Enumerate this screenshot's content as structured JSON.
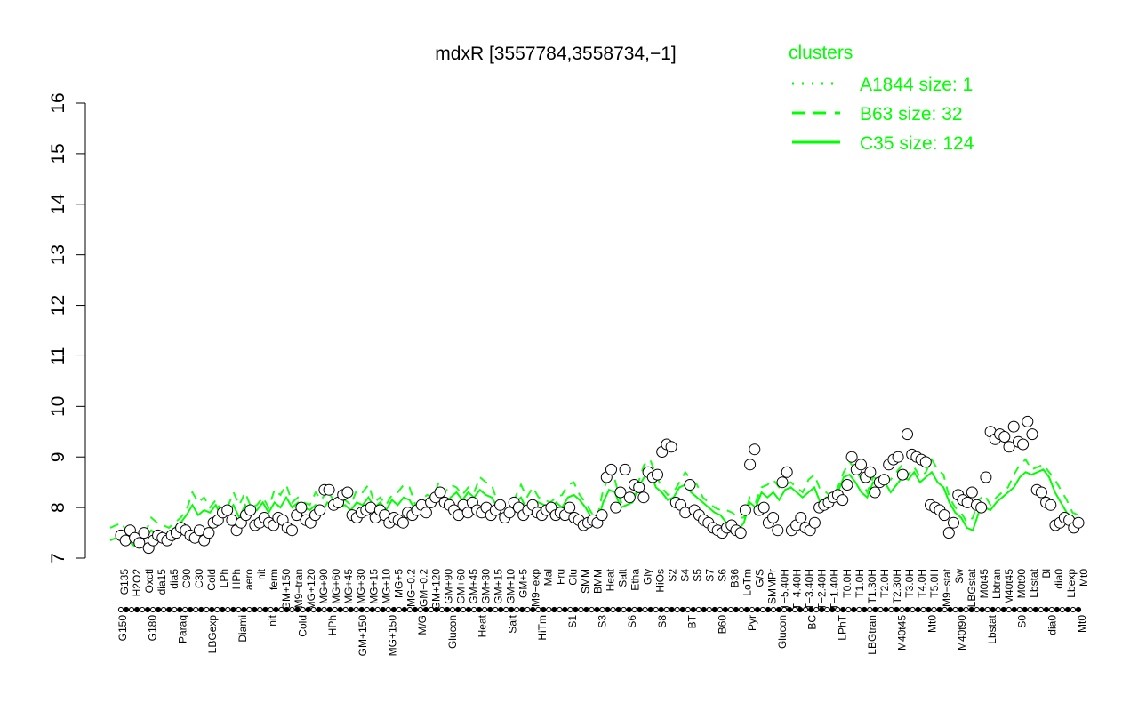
{
  "colors": {
    "axis": "#000000",
    "series": "#00ff00",
    "point_fill": "#ffffff",
    "point_stroke": "#000000"
  },
  "chart_data": {
    "type": "line",
    "title": "mdxR [3557784,3558734,−1]",
    "xlabel": "",
    "ylabel": "",
    "ylim": [
      7,
      16
    ],
    "yticks": [
      7,
      8,
      9,
      10,
      11,
      12,
      13,
      14,
      15,
      16
    ],
    "legend": {
      "title": "clusters",
      "placement": "top-right",
      "entries": [
        {
          "label": "A1844 size: 1",
          "style": "dotted"
        },
        {
          "label": "B63 size: 32",
          "style": "dashed"
        },
        {
          "label": "C35 size: 124",
          "style": "solid"
        }
      ]
    },
    "x_labels_top": [
      "G135",
      "H2O2",
      "Oxctl",
      "dia15",
      "dia5",
      "C90",
      "C30",
      "Cold",
      "LPh",
      "HPh",
      "aero",
      "nit",
      "ferm",
      "GM+150",
      "M9−tran",
      "MG+120",
      "MG+90",
      "MG+60",
      "MG+45",
      "MG+30",
      "MG+15",
      "MG+10",
      "MG+5",
      "MG−0.2",
      "GM−0.2",
      "GM+120",
      "GM+90",
      "GM+60",
      "GM+45",
      "GM+30",
      "GM+15",
      "GM+10",
      "GM+5",
      "M9−exp",
      "Mal",
      "Fru",
      "Glu",
      "SMM",
      "BMM",
      "Heat",
      "Salt",
      "Etha",
      "Gly",
      "HiOs",
      "S2",
      "S4",
      "S5",
      "S7",
      "S6",
      "B36",
      "LoTm",
      "G/S",
      "SMMPr",
      "T−5.40H",
      "T−4.40H",
      "T−3.40H",
      "T−2.40H",
      "T−1.40H",
      "T0.0H",
      "T1.0H",
      "T1.30H",
      "T2.0H",
      "T2.30H",
      "T3.0H",
      "T4.0H",
      "T5.0H",
      "M9−stat",
      "Sw",
      "LBGstat",
      "M0t45",
      "Lbtran",
      "M40t45",
      "M0t90",
      "Lbstat",
      "Bl",
      "dia0",
      "Lbexp",
      "Mt0"
    ],
    "x_labels_bottom": [
      "G150",
      "G180",
      "Paraq",
      "LBGexp",
      "Diami",
      "nit",
      "Cold",
      "HPh",
      "GM+150",
      "MG+150",
      "M/G",
      "Glucon",
      "Heat",
      "Salt",
      "HiTm",
      "S1",
      "S3",
      "S6",
      "S8",
      "BT",
      "B60",
      "Pyr",
      "Glucon",
      "BC",
      "LPhT",
      "LBGtran",
      "M40t45",
      "Mt0",
      "M40t90",
      "Lbstat",
      "S0",
      "dia0",
      "Mt0"
    ],
    "series": [
      {
        "name": "C35 size: 124",
        "style": "solid",
        "y": [
          7.35,
          7.4,
          7.45,
          7.35,
          7.25,
          7.3,
          7.4,
          7.55,
          7.45,
          7.4,
          7.5,
          7.6,
          7.7,
          7.85,
          8.05,
          7.85,
          7.95,
          7.9,
          8.05,
          7.8,
          7.9,
          8.05,
          7.8,
          8.05,
          7.9,
          7.95,
          8.1,
          7.9,
          8.1,
          8.0,
          8.2,
          8.0,
          8.1,
          8.0,
          7.95,
          8.05,
          7.9,
          8.1,
          8.05,
          8.0,
          8.05,
          7.95,
          8.1,
          8.05,
          8.2,
          8.0,
          8.1,
          7.95,
          8.15,
          8.05,
          8.2,
          8.15,
          7.95,
          8.05,
          8.15,
          8.1,
          8.25,
          8.05,
          8.2,
          8.3,
          8.15,
          8.3,
          8.2,
          8.35,
          8.25,
          8.2,
          8.0,
          7.75,
          7.85,
          8.1,
          8.2,
          7.95,
          8.15,
          8.1,
          8.05,
          8.0,
          8.1,
          8.0,
          8.2,
          8.25,
          8.15,
          8.0,
          7.8,
          7.7,
          8.1,
          8.35,
          8.3,
          8.0,
          8.05,
          8.1,
          8.4,
          8.6,
          8.7,
          8.4,
          8.3,
          8.15,
          8.2,
          8.4,
          8.45,
          8.3,
          8.2,
          8.1,
          8.0,
          7.9,
          7.85,
          7.7,
          7.65,
          7.55,
          7.7,
          8.1,
          8.0,
          8.3,
          8.2,
          8.3,
          8.15,
          8.35,
          8.4,
          8.3,
          8.2,
          8.3,
          8.4,
          8.1,
          8.2,
          8.1,
          8.3,
          8.6,
          8.65,
          8.5,
          8.3,
          8.2,
          8.5,
          8.45,
          8.5,
          8.3,
          8.45,
          8.6,
          8.55,
          8.7,
          8.5,
          8.6,
          8.7,
          8.5,
          8.4,
          8.1,
          7.9,
          7.8,
          7.6,
          7.55,
          7.9,
          8.0,
          7.95,
          8.1,
          8.2,
          8.3,
          8.4,
          8.6,
          8.7,
          8.65,
          8.7,
          8.75,
          8.6,
          8.3,
          8.1,
          7.9,
          7.8,
          7.75
        ]
      },
      {
        "name": "B63 size: 32",
        "style": "dashed",
        "y": [
          null,
          null,
          null,
          null,
          null,
          null,
          null,
          null,
          null,
          null,
          null,
          null,
          null,
          null,
          null,
          null,
          null,
          null,
          null,
          null,
          null,
          null,
          null,
          null,
          null,
          null,
          null,
          null,
          null,
          null,
          null,
          null,
          null,
          null,
          null,
          null,
          null,
          null,
          null,
          null,
          null,
          null,
          null,
          null,
          null,
          null,
          null,
          null,
          null,
          null,
          null,
          null,
          null,
          null,
          null,
          null,
          null,
          null,
          null,
          null,
          null,
          null,
          null,
          null,
          null,
          null,
          null,
          null,
          null,
          null,
          null,
          null,
          null,
          null,
          null,
          null,
          null,
          null,
          null,
          null,
          null,
          null,
          null,
          null,
          null,
          null,
          null,
          null,
          null,
          null,
          null,
          null,
          null,
          null,
          null,
          null,
          null,
          null,
          null,
          null,
          null,
          null,
          null,
          null,
          null,
          null,
          null,
          null,
          null,
          null,
          null,
          null,
          null,
          null,
          null,
          null,
          null,
          null,
          null,
          null,
          null,
          null,
          null,
          null,
          null,
          null,
          null,
          null,
          null,
          null,
          null,
          null,
          null,
          null,
          null,
          null,
          null,
          null,
          null,
          null,
          null,
          null,
          null,
          null,
          null,
          null,
          null,
          null,
          null,
          null,
          null,
          null,
          null,
          null,
          null,
          null,
          null,
          null,
          null,
          null,
          null,
          null,
          null,
          null
        ]
      },
      {
        "name": "A1844 size: 1",
        "style": "dotted",
        "y": []
      }
    ],
    "points": [
      7.45,
      7.35,
      7.55,
      7.4,
      7.3,
      7.5,
      7.2,
      7.35,
      7.45,
      7.4,
      7.35,
      7.45,
      7.5,
      7.6,
      7.55,
      7.45,
      7.4,
      7.55,
      7.35,
      7.5,
      7.7,
      7.75,
      7.9,
      7.95,
      7.75,
      7.55,
      7.7,
      7.85,
      7.95,
      7.65,
      7.7,
      7.8,
      7.7,
      7.65,
      7.8,
      7.75,
      7.6,
      7.55,
      7.85,
      8.0,
      7.75,
      7.7,
      7.85,
      7.95,
      8.35,
      8.35,
      8.05,
      8.1,
      8.25,
      8.3,
      7.85,
      7.8,
      7.9,
      7.95,
      8.0,
      7.8,
      7.95,
      7.85,
      7.7,
      7.8,
      7.75,
      7.7,
      7.9,
      7.85,
      7.95,
      8.05,
      7.9,
      8.1,
      8.2,
      8.3,
      8.1,
      8.05,
      7.95,
      7.85,
      8.05,
      7.9,
      8.1,
      7.95,
      7.9,
      8.0,
      7.85,
      7.95,
      8.05,
      7.8,
      7.9,
      8.1,
      8.0,
      7.85,
      7.95,
      8.05,
      7.9,
      7.85,
      7.95,
      8.0,
      7.85,
      7.9,
      7.85,
      8.0,
      7.8,
      7.75,
      7.65,
      7.7,
      7.75,
      7.7,
      7.85,
      8.6,
      8.75,
      8.0,
      8.3,
      8.75,
      8.2,
      8.45,
      8.4,
      8.2,
      8.7,
      8.6,
      8.65,
      9.1,
      9.25,
      9.2,
      8.1,
      8.05,
      7.9,
      8.45,
      7.95,
      7.85,
      7.75,
      7.7,
      7.6,
      7.55,
      7.5,
      7.6,
      7.65,
      7.55,
      7.5,
      7.95,
      8.85,
      9.15,
      7.95,
      8.0,
      7.7,
      7.8,
      7.55,
      8.5,
      8.7,
      7.55,
      7.65,
      7.8,
      7.6,
      7.55,
      7.7,
      8.0,
      8.05,
      8.1,
      8.2,
      8.25,
      8.15,
      8.45,
      9.0,
      8.75,
      8.85,
      8.6,
      8.7,
      8.3,
      8.5,
      8.55,
      8.85,
      8.95,
      9.0,
      8.65,
      9.45,
      9.05,
      9.0,
      8.95,
      8.9,
      8.05,
      8.0,
      7.95,
      7.85,
      7.5,
      7.7,
      8.25,
      8.15,
      8.1,
      8.3,
      8.05,
      8.0,
      8.6,
      9.5,
      9.35,
      9.45,
      9.4,
      9.2,
      9.6,
      9.3,
      9.25,
      9.7,
      9.45,
      8.35,
      8.3,
      8.1,
      8.05,
      7.65,
      7.7,
      7.8,
      7.75,
      7.6,
      7.7
    ]
  }
}
